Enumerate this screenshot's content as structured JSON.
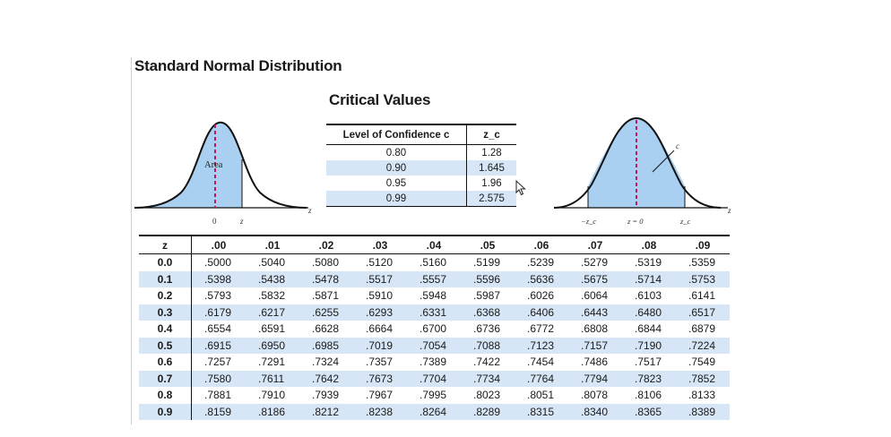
{
  "title": "Standard Normal Distribution",
  "subtitle": "Critical Values",
  "left_figure": {
    "area_label": "Area",
    "axis_labels": [
      "0",
      "z"
    ],
    "axis_end_label": "z"
  },
  "right_figure": {
    "c_label": "c",
    "axis_labels": [
      "−z_c",
      "z = 0",
      "z_c"
    ],
    "axis_end_label": "z"
  },
  "critical_values": {
    "headers": [
      "Level of Confidence c",
      "z_c"
    ],
    "rows": [
      [
        "0.80",
        "1.28"
      ],
      [
        "0.90",
        "1.645"
      ],
      [
        "0.95",
        "1.96"
      ],
      [
        "0.99",
        "2.575"
      ]
    ]
  },
  "z_table": {
    "headers": [
      "z",
      ".00",
      ".01",
      ".02",
      ".03",
      ".04",
      ".05",
      ".06",
      ".07",
      ".08",
      ".09"
    ],
    "rows": [
      [
        "0.0",
        ".5000",
        ".5040",
        ".5080",
        ".5120",
        ".5160",
        ".5199",
        ".5239",
        ".5279",
        ".5319",
        ".5359"
      ],
      [
        "0.1",
        ".5398",
        ".5438",
        ".5478",
        ".5517",
        ".5557",
        ".5596",
        ".5636",
        ".5675",
        ".5714",
        ".5753"
      ],
      [
        "0.2",
        ".5793",
        ".5832",
        ".5871",
        ".5910",
        ".5948",
        ".5987",
        ".6026",
        ".6064",
        ".6103",
        ".6141"
      ],
      [
        "0.3",
        ".6179",
        ".6217",
        ".6255",
        ".6293",
        ".6331",
        ".6368",
        ".6406",
        ".6443",
        ".6480",
        ".6517"
      ],
      [
        "0.4",
        ".6554",
        ".6591",
        ".6628",
        ".6664",
        ".6700",
        ".6736",
        ".6772",
        ".6808",
        ".6844",
        ".6879"
      ],
      [
        "0.5",
        ".6915",
        ".6950",
        ".6985",
        ".7019",
        ".7054",
        ".7088",
        ".7123",
        ".7157",
        ".7190",
        ".7224"
      ],
      [
        "0.6",
        ".7257",
        ".7291",
        ".7324",
        ".7357",
        ".7389",
        ".7422",
        ".7454",
        ".7486",
        ".7517",
        ".7549"
      ],
      [
        "0.7",
        ".7580",
        ".7611",
        ".7642",
        ".7673",
        ".7704",
        ".7734",
        ".7764",
        ".7794",
        ".7823",
        ".7852"
      ],
      [
        "0.8",
        ".7881",
        ".7910",
        ".7939",
        ".7967",
        ".7995",
        ".8023",
        ".8051",
        ".8078",
        ".8106",
        ".8133"
      ],
      [
        "0.9",
        ".8159",
        ".8186",
        ".8212",
        ".8238",
        ".8264",
        ".8289",
        ".8315",
        ".8340",
        ".8365",
        ".8389"
      ]
    ]
  },
  "colors": {
    "fill": "#a9d0f0",
    "row_shade": "#d6e6f6",
    "mean_line": "#c0185a"
  },
  "icons": [
    "mouse-cursor-icon"
  ]
}
